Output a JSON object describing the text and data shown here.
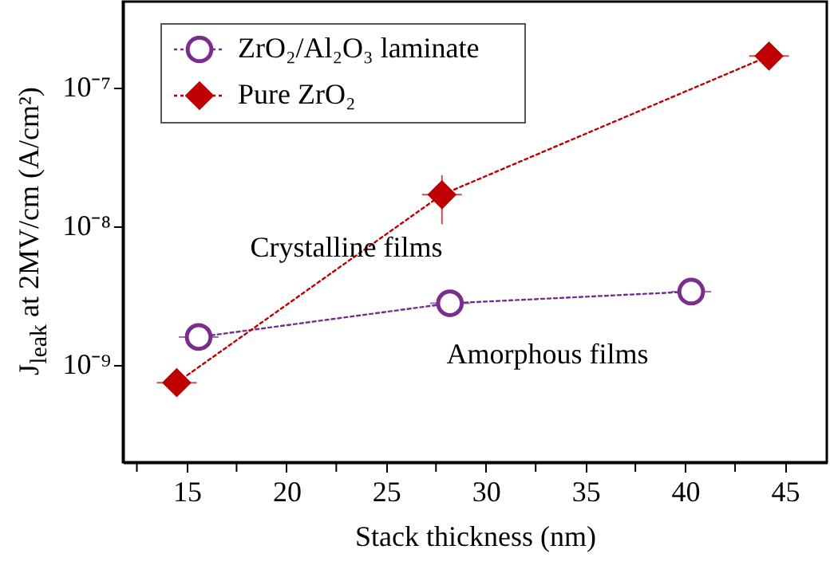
{
  "chart_data": {
    "type": "line",
    "xlabel": "Stack thickness (nm)",
    "ylabel": "J$_{leak}$ at 2MV/cm (A/cm²)",
    "xlim": [
      11.8,
      47.1
    ],
    "xticks": [
      {
        "value": 12.5,
        "label": null
      },
      15,
      {
        "value": 17.5,
        "label": null
      },
      20,
      {
        "value": 22.5,
        "label": null
      },
      25,
      {
        "value": 27.5,
        "label": null
      },
      30,
      {
        "value": 32.5,
        "label": null
      },
      35,
      {
        "value": 37.5,
        "label": null
      },
      40,
      {
        "value": 42.5,
        "label": null
      },
      45
    ],
    "ylim": [
      2e-10,
      4.2e-07
    ],
    "yticks": [
      {
        "value": 1e-09,
        "label": "10⁻⁹"
      },
      {
        "value": 1e-08,
        "label": "10⁻⁸"
      },
      {
        "value": 1e-07,
        "label": "10⁻⁷"
      }
    ],
    "log": "y",
    "grid": false,
    "legend": "top left",
    "line_style": "dotted",
    "annotations": [
      "Crystalline films",
      "Amorphous films"
    ],
    "series": [
      {
        "name": "ZrO₂/Al₂O₃ laminate",
        "color": "#7b2d8e",
        "marker": "circle",
        "x": [
          15.6,
          28.2,
          40.3
        ],
        "values": [
          1.6e-09,
          2.8e-09,
          3.4e-09
        ],
        "xerrors": [
          1.0,
          1.0,
          1.0
        ]
      },
      {
        "name": "Pure ZrO₂",
        "color": "#c00000",
        "marker": "diamond",
        "x": [
          14.5,
          27.8,
          44.2
        ],
        "values": [
          7.5e-10,
          1.7e-08,
          1.7e-07
        ],
        "xerrors": [
          1.0,
          1.0,
          1.0
        ],
        "errors": [
          [
            6.5e-10,
            8.7e-10
          ],
          [
            1.04e-08,
            2.35e-08
          ],
          null
        ]
      }
    ]
  }
}
